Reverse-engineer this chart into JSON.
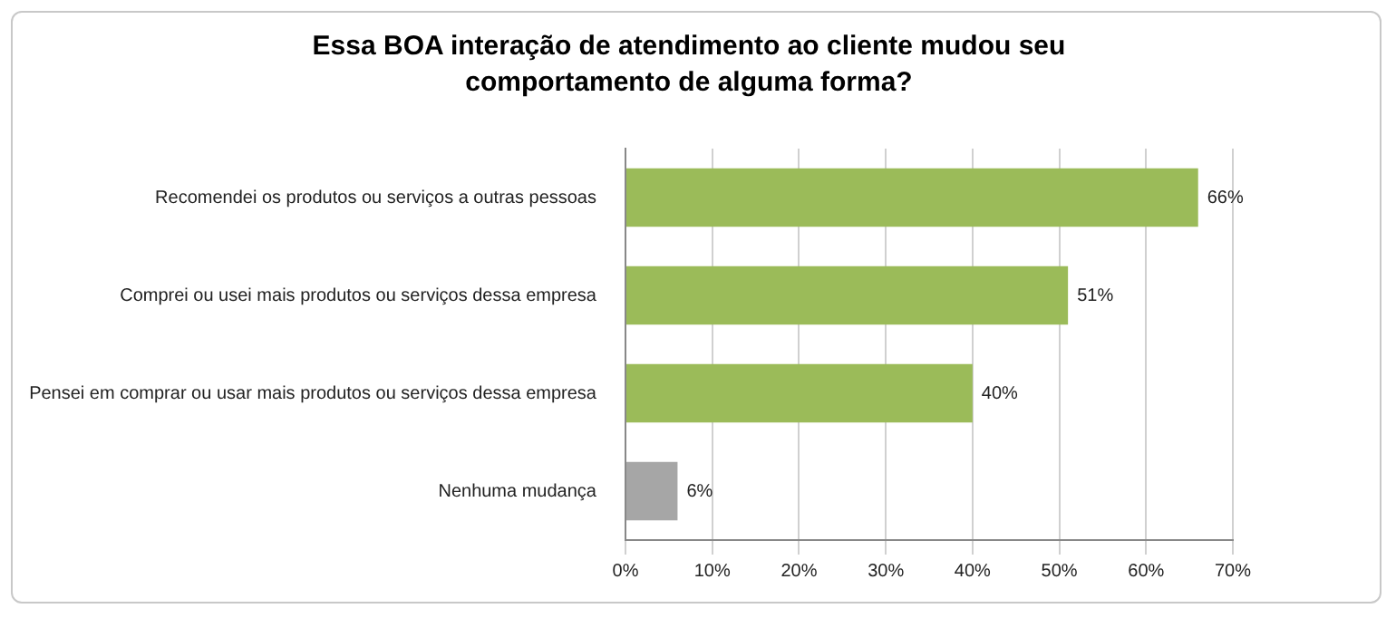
{
  "chart_data": {
    "type": "bar",
    "orientation": "horizontal",
    "title": "Essa BOA interação de atendimento ao cliente mudou seu comportamento de alguma forma?",
    "categories": [
      "Recomendei os produtos ou serviços a outras pessoas",
      "Comprei ou usei mais produtos ou serviços dessa empresa",
      "Pensei em comprar ou usar mais produtos ou serviços dessa empresa",
      "Nenhuma mudança"
    ],
    "values": [
      66,
      51,
      40,
      6
    ],
    "colors": [
      "#9bbb59",
      "#9bbb59",
      "#9bbb59",
      "#a6a6a6"
    ],
    "value_labels": [
      "66%",
      "51%",
      "40%",
      "6%"
    ],
    "xlim": [
      0,
      70
    ],
    "xticks": [
      {
        "value": 0,
        "label": "0%"
      },
      {
        "value": 10,
        "label": "10%"
      },
      {
        "value": 20,
        "label": "20%"
      },
      {
        "value": 30,
        "label": "30%"
      },
      {
        "value": 40,
        "label": "40%"
      },
      {
        "value": 50,
        "label": "50%"
      },
      {
        "value": 60,
        "label": "60%"
      },
      {
        "value": 70,
        "label": "70%"
      }
    ],
    "grid": "x",
    "legend": false
  }
}
